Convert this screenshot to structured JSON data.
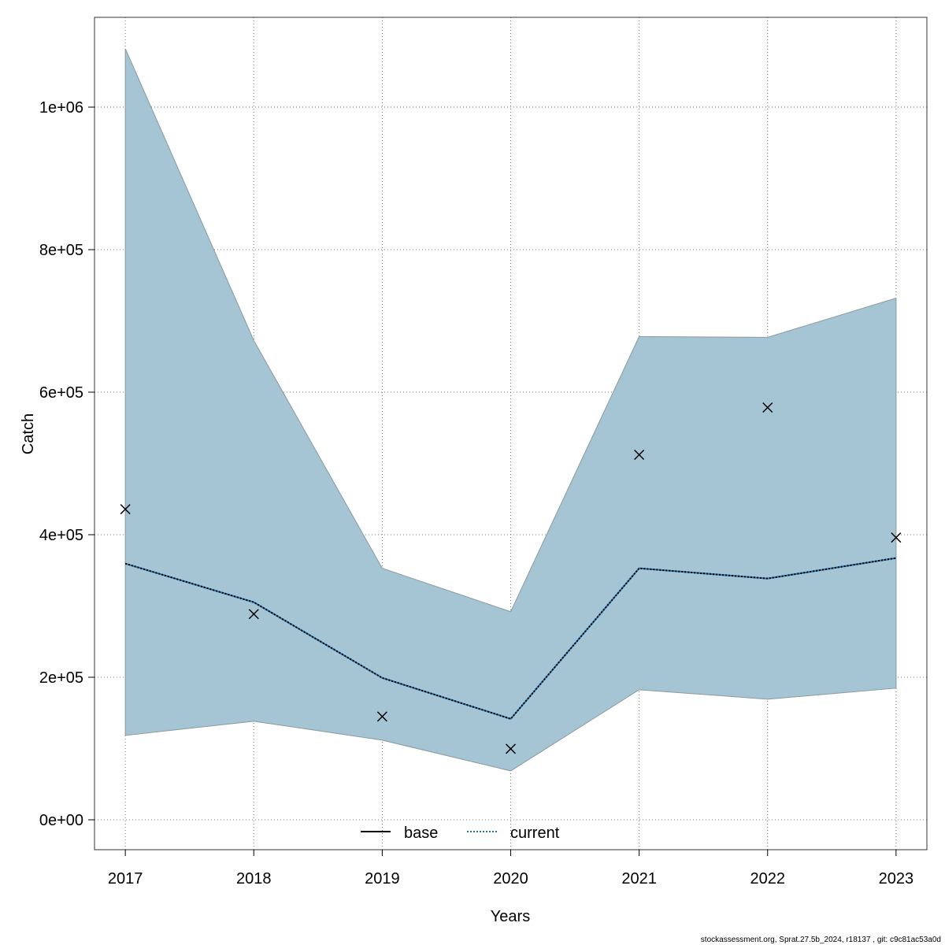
{
  "chart_data": {
    "type": "line",
    "title": "",
    "xlabel": "Years",
    "ylabel": "Catch",
    "x": [
      2017,
      2018,
      2019,
      2020,
      2021,
      2022,
      2023
    ],
    "x_tick_labels": [
      "2017",
      "2018",
      "2019",
      "2020",
      "2021",
      "2022",
      "2023"
    ],
    "y_ticks": [
      0,
      200000,
      400000,
      600000,
      800000,
      1000000
    ],
    "y_tick_labels": [
      "0e+00",
      "2e+05",
      "4e+05",
      "6e+05",
      "8e+05",
      "1e+06"
    ],
    "ylim": [
      -42000,
      1126000
    ],
    "xlim": [
      2016.76,
      2023.24
    ],
    "grid": true,
    "confidence_band": {
      "name": "current CI",
      "upper": [
        1082000,
        672600,
        352900,
        292000,
        678000,
        677000,
        732000
      ],
      "lower": [
        118400,
        138300,
        111700,
        68600,
        182500,
        169200,
        184700
      ],
      "color": "#a5c4d4"
    },
    "series": [
      {
        "name": "current",
        "style": "dotted",
        "color": "#1f78b4",
        "values": [
          359500,
          305300,
          199100,
          141600,
          352900,
          338500,
          367300
        ]
      },
      {
        "name": "observed",
        "style": "x-marker",
        "color": "#000000",
        "values": [
          435800,
          288700,
          144900,
          99600,
          512200,
          578500,
          396000
        ]
      }
    ],
    "legend": {
      "placement": "bottom-center",
      "entries": [
        {
          "label": "base",
          "style": "solid",
          "color": "#000000"
        },
        {
          "label": "current",
          "style": "dotted",
          "color": "#1f78b4"
        }
      ]
    },
    "footer": "stockassessment.org, Sprat.27.5b_2024, r18137 , git: c9c81ac53a0d"
  }
}
